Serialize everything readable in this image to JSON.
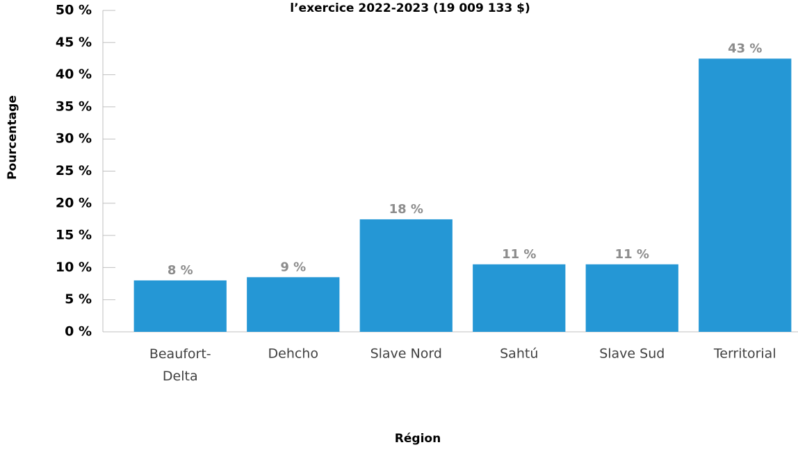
{
  "chart_data": {
    "type": "bar",
    "title": "l’exercice 2022-2023 (19 009 133 $)",
    "x_label": "Région",
    "y_label": "Pourcentage",
    "categories": [
      "Beaufort-Delta",
      "Dehcho",
      "Slave Nord",
      "Sahtú",
      "Slave Sud",
      "Territorial"
    ],
    "values": [
      8.0,
      8.5,
      17.5,
      10.5,
      10.5,
      42.5
    ],
    "value_labels": [
      "8 %",
      "9 %",
      "18 %",
      "11 %",
      "11 %",
      "43 %"
    ],
    "color": "#2597d5",
    "ylim": [
      0,
      50
    ],
    "yticks": [
      {
        "value": 0,
        "label": "0 %"
      },
      {
        "value": 5,
        "label": "5 %"
      },
      {
        "value": 10,
        "label": "10 %"
      },
      {
        "value": 15,
        "label": "15 %"
      },
      {
        "value": 20,
        "label": "20 %"
      },
      {
        "value": 25,
        "label": "25 %"
      },
      {
        "value": 30,
        "label": "30 %"
      },
      {
        "value": 35,
        "label": "35 %"
      },
      {
        "value": 40,
        "label": "40 %"
      },
      {
        "value": 45,
        "label": "45 %"
      },
      {
        "value": 50,
        "label": "50 %"
      }
    ],
    "grid": false
  }
}
